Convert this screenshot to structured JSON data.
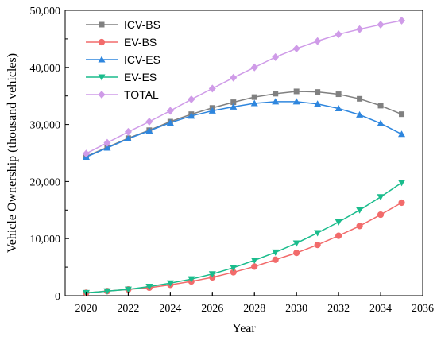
{
  "chart_data": {
    "type": "line",
    "xlabel": "Year",
    "ylabel": "Vehicle Ownership (thousand vehicles)",
    "xlim": [
      2019,
      2036
    ],
    "ylim": [
      0,
      50000
    ],
    "x_ticks": [
      2020,
      2022,
      2024,
      2026,
      2028,
      2030,
      2032,
      2034,
      2036
    ],
    "y_ticks": [
      0,
      10000,
      20000,
      30000,
      40000,
      50000
    ],
    "x_tick_labels": [
      "2020",
      "2022",
      "2024",
      "2026",
      "2028",
      "2030",
      "2032",
      "2034",
      "2036"
    ],
    "y_tick_labels": [
      "0",
      "10,000",
      "20,000",
      "30,000",
      "40,000",
      "50,000"
    ],
    "legend_position": "top-left",
    "grid": false,
    "x": [
      2020,
      2021,
      2022,
      2023,
      2024,
      2025,
      2026,
      2027,
      2028,
      2029,
      2030,
      2031,
      2032,
      2033,
      2034,
      2035
    ],
    "series": [
      {
        "name": "ICV-BS",
        "color": "#808080",
        "marker": "square",
        "values": [
          24400,
          26000,
          27600,
          29000,
          30500,
          31800,
          32900,
          33900,
          34800,
          35400,
          35800,
          35700,
          35300,
          34500,
          33300,
          31800
        ]
      },
      {
        "name": "EV-BS",
        "color": "#f26b6b",
        "marker": "circle",
        "values": [
          500,
          800,
          1100,
          1400,
          1900,
          2500,
          3200,
          4100,
          5100,
          6300,
          7500,
          8900,
          10500,
          12200,
          14200,
          16300
        ]
      },
      {
        "name": "ICV-ES",
        "color": "#2e86de",
        "marker": "triangle-up",
        "values": [
          24300,
          25900,
          27500,
          28900,
          30300,
          31500,
          32400,
          33100,
          33700,
          34000,
          34000,
          33600,
          32800,
          31700,
          30200,
          28300
        ]
      },
      {
        "name": "EV-ES",
        "color": "#1abc8c",
        "marker": "triangle-down",
        "values": [
          500,
          800,
          1100,
          1600,
          2200,
          2900,
          3800,
          4900,
          6200,
          7600,
          9200,
          11000,
          12900,
          15000,
          17300,
          19800
        ]
      },
      {
        "name": "TOTAL",
        "color": "#cf9be8",
        "marker": "diamond",
        "values": [
          24900,
          26800,
          28700,
          30500,
          32400,
          34400,
          36300,
          38200,
          40000,
          41800,
          43300,
          44600,
          45800,
          46700,
          47500,
          48200
        ]
      }
    ]
  }
}
